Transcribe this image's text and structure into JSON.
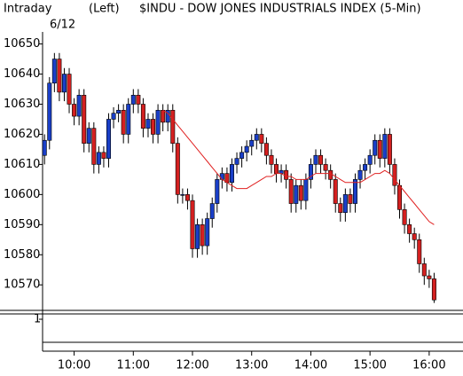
{
  "chart_data": {
    "type": "candlestick",
    "header": {
      "label": "Intraday",
      "axis_side": "(Left)",
      "title": "$INDU - DOW JONES INDUSTRIALS INDEX (5-Min)",
      "date": "6/12"
    },
    "x": [
      570,
      575,
      580,
      585,
      590,
      595,
      600,
      605,
      610,
      615,
      620,
      625,
      630,
      635,
      640,
      645,
      650,
      655,
      660,
      665,
      670,
      675,
      680,
      685,
      690,
      695,
      700,
      705,
      710,
      715,
      720,
      725,
      730,
      735,
      740,
      745,
      750,
      755,
      760,
      765,
      770,
      775,
      780,
      785,
      790,
      795,
      800,
      805,
      810,
      815,
      820,
      825,
      830,
      835,
      840,
      845,
      850,
      855,
      860,
      865,
      870,
      875,
      880,
      885,
      890,
      895,
      900,
      905,
      910,
      915,
      920,
      925,
      930,
      935,
      940,
      945,
      950,
      955,
      960,
      965
    ],
    "open": [
      10613,
      10618,
      10637,
      10645,
      10634,
      10640,
      10630,
      10626,
      10633,
      10617,
      10622,
      10610,
      10614,
      10612,
      10625,
      10627,
      10628,
      10620,
      10630,
      10633,
      10630,
      10622,
      10625,
      10620,
      10628,
      10624,
      10628,
      10617,
      10600,
      10600,
      10598,
      10582,
      10590,
      10583,
      10592,
      10597,
      10605,
      10607,
      10604,
      10610,
      10612,
      10614,
      10616,
      10618,
      10620,
      10617,
      10613,
      10610,
      10607,
      10608,
      10605,
      10597,
      10603,
      10598,
      10605,
      10610,
      10613,
      10610,
      10608,
      10605,
      10597,
      10594,
      10600,
      10597,
      10605,
      10608,
      10610,
      10613,
      10618,
      10612,
      10620,
      10610,
      10603,
      10595,
      10590,
      10587,
      10585,
      10577,
      10573,
      10572
    ],
    "high": [
      10620,
      10639,
      10647,
      10647,
      10642,
      10642,
      10632,
      10635,
      10635,
      10624,
      10624,
      10616,
      10616,
      10627,
      10629,
      10630,
      10630,
      10632,
      10635,
      10635,
      10632,
      10627,
      10627,
      10630,
      10630,
      10630,
      10630,
      10619,
      10602,
      10602,
      10600,
      10592,
      10592,
      10594,
      10599,
      10607,
      10609,
      10609,
      10612,
      10614,
      10616,
      10618,
      10620,
      10622,
      10622,
      10619,
      10615,
      10612,
      10610,
      10610,
      10607,
      10605,
      10605,
      10607,
      10612,
      10615,
      10615,
      10612,
      10610,
      10607,
      10599,
      10602,
      10602,
      10607,
      10610,
      10612,
      10615,
      10620,
      10620,
      10622,
      10622,
      10612,
      10605,
      10597,
      10592,
      10589,
      10587,
      10579,
      10575,
      10574
    ],
    "low": [
      10610,
      10615,
      10634,
      10631,
      10631,
      10627,
      10623,
      10623,
      10614,
      10614,
      10607,
      10607,
      10609,
      10609,
      10622,
      10624,
      10617,
      10617,
      10627,
      10627,
      10619,
      10619,
      10617,
      10617,
      10621,
      10621,
      10614,
      10597,
      10597,
      10595,
      10579,
      10579,
      10580,
      10580,
      10589,
      10594,
      10602,
      10601,
      10601,
      10607,
      10609,
      10611,
      10613,
      10615,
      10614,
      10610,
      10607,
      10604,
      10604,
      10602,
      10594,
      10594,
      10595,
      10595,
      10602,
      10607,
      10607,
      10605,
      10602,
      10594,
      10591,
      10591,
      10594,
      10594,
      10602,
      10605,
      10607,
      10610,
      10609,
      10609,
      10607,
      10600,
      10592,
      10587,
      10584,
      10582,
      10574,
      10570,
      10569,
      10564
    ],
    "close": [
      10618,
      10637,
      10645,
      10634,
      10640,
      10630,
      10626,
      10633,
      10617,
      10622,
      10610,
      10614,
      10612,
      10625,
      10627,
      10628,
      10620,
      10630,
      10633,
      10630,
      10622,
      10625,
      10620,
      10628,
      10624,
      10628,
      10617,
      10600,
      10600,
      10598,
      10582,
      10590,
      10583,
      10592,
      10597,
      10605,
      10607,
      10604,
      10610,
      10612,
      10614,
      10616,
      10618,
      10620,
      10617,
      10613,
      10610,
      10607,
      10608,
      10605,
      10597,
      10603,
      10598,
      10605,
      10610,
      10613,
      10610,
      10608,
      10605,
      10597,
      10594,
      10600,
      10597,
      10605,
      10608,
      10610,
      10613,
      10618,
      10612,
      10620,
      10610,
      10603,
      10595,
      10590,
      10587,
      10585,
      10577,
      10573,
      10572,
      10565
    ],
    "moving_average": {
      "color": "#e02020",
      "values": [
        null,
        null,
        null,
        null,
        null,
        null,
        null,
        null,
        null,
        null,
        null,
        null,
        null,
        null,
        null,
        null,
        null,
        null,
        null,
        null,
        null,
        null,
        null,
        null,
        10628,
        10627,
        10625,
        10623,
        10621,
        10619,
        10617,
        10615,
        10613,
        10611,
        10609,
        10607,
        10605,
        10604,
        10603,
        10602,
        10602,
        10602,
        10603,
        10604,
        10605,
        10606,
        10606,
        10607,
        10607,
        10606,
        10606,
        10605,
        10605,
        10605,
        10606,
        10607,
        10607,
        10607,
        10607,
        10606,
        10605,
        10604,
        10604,
        10604,
        10604,
        10605,
        10606,
        10607,
        10607,
        10608,
        10607,
        10605,
        10603,
        10601,
        10599,
        10597,
        10595,
        10593,
        10591,
        10590
      ]
    },
    "up_color": "#1a3fc8",
    "down_color": "#d42020",
    "ylim": [
      10563,
      10654
    ],
    "yticks": [
      10570,
      10580,
      10590,
      10600,
      10610,
      10620,
      10630,
      10640,
      10650
    ],
    "xlim": [
      568,
      988
    ],
    "xticks": [
      {
        "value": 600,
        "label": "10:00"
      },
      {
        "value": 660,
        "label": "11:00"
      },
      {
        "value": 720,
        "label": "12:00"
      },
      {
        "value": 780,
        "label": "13:00"
      },
      {
        "value": 840,
        "label": "14:00"
      },
      {
        "value": 900,
        "label": "15:00"
      },
      {
        "value": 960,
        "label": "16:00"
      }
    ],
    "lower_panel": {
      "yticks": [
        1
      ]
    }
  }
}
